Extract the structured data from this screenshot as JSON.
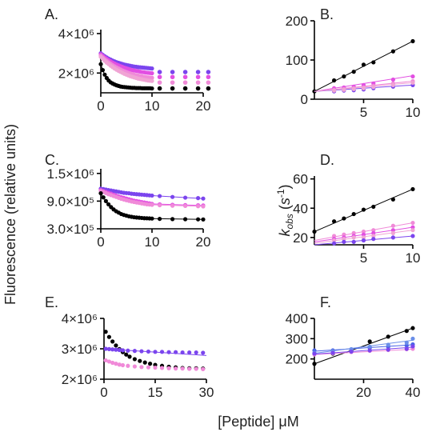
{
  "colors": {
    "black": "#000000",
    "purple": "#7b45ee",
    "magenta": "#e24fe2",
    "pink": "#f08ad8",
    "lightpink": "#f0a4d4",
    "blue": "#4a63e6",
    "lightblue": "#6a8ee8"
  },
  "y_axis_title": "Fluorescence (relative units)",
  "x_axis_title": "[Peptide] μM",
  "chart_data": [
    {
      "panel": "A.",
      "type": "scatter",
      "xlim": [
        0,
        20
      ],
      "ylim": [
        1000000,
        4200000
      ],
      "xticks": [
        0,
        10,
        20
      ],
      "xtick_labels": [
        "0",
        "10",
        "20"
      ],
      "yticks": [
        2000000,
        4000000
      ],
      "ytick_labels": [
        "2×10⁶",
        "4×10⁶"
      ],
      "series": [
        {
          "color": "purple",
          "values": [
            3000000,
            2920000,
            2850000,
            2790000,
            2730000,
            2680000,
            2630000,
            2590000,
            2550000,
            2520000,
            2490000,
            2460000,
            2430000,
            2410000,
            2390000,
            2370000,
            2350000,
            2330000,
            2320000,
            2300000,
            2290000,
            2280000,
            2270000,
            2260000,
            2250000,
            2240000,
            2230000
          ]
        },
        {
          "color": "magenta",
          "values": [
            2950000,
            2870000,
            2790000,
            2720000,
            2650000,
            2590000,
            2530000,
            2480000,
            2430000,
            2390000,
            2350000,
            2310000,
            2270000,
            2240000,
            2210000,
            2180000,
            2150000,
            2130000,
            2110000,
            2090000,
            2070000,
            2050000,
            2040000,
            2020000,
            2010000,
            2000000,
            1990000
          ]
        },
        {
          "color": "pink",
          "values": [
            2880000,
            2790000,
            2700000,
            2620000,
            2540000,
            2470000,
            2400000,
            2340000,
            2280000,
            2230000,
            2180000,
            2130000,
            2090000,
            2050000,
            2010000,
            1980000,
            1950000,
            1920000,
            1890000,
            1870000,
            1850000,
            1830000,
            1810000,
            1790000,
            1780000,
            1770000,
            1760000
          ]
        },
        {
          "color": "lightpink",
          "values": [
            2820000,
            2720000,
            2620000,
            2530000,
            2450000,
            2370000,
            2300000,
            2230000,
            2170000,
            2110000,
            2060000,
            2010000,
            1960000,
            1920000,
            1880000,
            1840000,
            1810000,
            1780000,
            1750000,
            1720000,
            1700000,
            1680000,
            1660000,
            1640000,
            1620000,
            1610000,
            1600000
          ]
        },
        {
          "color": "black",
          "values": [
            2450000,
            2150000,
            1920000,
            1750000,
            1620000,
            1530000,
            1470000,
            1420000,
            1380000,
            1350000,
            1320000,
            1300000,
            1290000,
            1280000,
            1270000,
            1260000,
            1250000,
            1250000,
            1240000,
            1240000,
            1240000,
            1230000,
            1230000,
            1230000,
            1230000,
            1230000,
            1220000
          ]
        }
      ],
      "series_ext": [
        {
          "color": "purple",
          "x": [
            11.5,
            14,
            16.5,
            19,
            21
          ],
          "y": [
            2050000,
            2050000,
            2050000,
            2050000,
            2050000
          ]
        },
        {
          "color": "magenta",
          "x": [
            11.5,
            14,
            16.5,
            19,
            21
          ],
          "y": [
            1800000,
            1800000,
            1800000,
            1800000,
            1800000
          ]
        },
        {
          "color": "pink",
          "x": [
            11.5,
            14,
            16.5,
            19,
            21
          ],
          "y": [
            1520000,
            1520000,
            1520000,
            1520000,
            1520000
          ]
        },
        {
          "color": "black",
          "x": [
            11.5,
            14,
            16.5,
            19,
            21
          ],
          "y": [
            1220000,
            1220000,
            1220000,
            1220000,
            1220000
          ]
        }
      ]
    },
    {
      "panel": "B.",
      "type": "scatter",
      "xlim": [
        0,
        10
      ],
      "ylim": [
        0,
        200
      ],
      "xticks": [
        5,
        10
      ],
      "xtick_labels": [
        "5",
        "10"
      ],
      "yticks": [
        0,
        100,
        200
      ],
      "ytick_labels": [
        "0",
        "100",
        "200"
      ],
      "series": [
        {
          "color": "black",
          "x": [
            0,
            2,
            3,
            4,
            5,
            6,
            8,
            10
          ],
          "y": [
            20,
            48,
            58,
            70,
            88,
            94,
            122,
            148
          ],
          "fit": [
            20,
            148
          ]
        },
        {
          "color": "magenta",
          "x": [
            2,
            3,
            4,
            5,
            6,
            8,
            10
          ],
          "y": [
            28,
            30,
            32,
            36,
            40,
            50,
            58
          ],
          "fit": [
            20,
            60
          ]
        },
        {
          "color": "pink",
          "x": [
            2,
            3,
            4,
            5,
            6,
            8,
            10
          ],
          "y": [
            24,
            26,
            28,
            30,
            34,
            40,
            46
          ],
          "fit": [
            20,
            46
          ]
        },
        {
          "color": "purple",
          "x": [
            2,
            3,
            4,
            5,
            6,
            8,
            10
          ],
          "y": [
            20,
            22,
            23,
            25,
            28,
            32,
            36
          ],
          "fit": [
            20,
            36
          ]
        },
        {
          "color": "lightpink",
          "x": [
            2,
            3,
            4,
            5,
            6,
            8,
            10
          ],
          "y": [
            22,
            24,
            26,
            28,
            31,
            36,
            42
          ],
          "fit": [
            20,
            42
          ]
        }
      ]
    },
    {
      "panel": "C.",
      "type": "scatter",
      "xlim": [
        0,
        20
      ],
      "ylim": [
        300000,
        1600000
      ],
      "xticks": [
        0,
        10,
        20
      ],
      "xtick_labels": [
        "0",
        "10",
        "20"
      ],
      "yticks": [
        300000,
        900000,
        1500000
      ],
      "ytick_labels": [
        "3.0×10⁵",
        "9.0×10⁵",
        "1.5×10⁶"
      ],
      "series": [
        {
          "color": "purple",
          "values": [
            1170000,
            1160000,
            1150000,
            1140000,
            1130000,
            1120000,
            1110000,
            1100000,
            1090000,
            1080000,
            1075000,
            1070000,
            1060000,
            1055000,
            1050000,
            1045000,
            1040000,
            1035000,
            1030000,
            1025000,
            1020000
          ],
          "x_end": 10,
          "ext": [
            1010000,
            990000,
            975000,
            965000,
            955000
          ]
        },
        {
          "color": "magenta",
          "values": [
            1140000,
            1120000,
            1100000,
            1080000,
            1060000,
            1040000,
            1020000,
            1000000,
            985000,
            970000,
            955000,
            940000,
            925000,
            910000,
            900000,
            890000,
            880000,
            870000,
            860000,
            850000,
            840000
          ],
          "x_end": 10,
          "ext": [
            830000,
            820000,
            815000,
            810000,
            805000
          ]
        },
        {
          "color": "pink",
          "values": [
            1120000,
            1100000,
            1075000,
            1050000,
            1030000,
            1010000,
            990000,
            970000,
            950000,
            935000,
            920000,
            905000,
            890000,
            880000,
            870000,
            860000,
            850000,
            840000,
            830000,
            825000,
            820000
          ],
          "x_end": 10,
          "ext": [
            810000,
            800000,
            795000,
            790000,
            785000
          ]
        },
        {
          "color": "black",
          "values": [
            1070000,
            980000,
            900000,
            830000,
            770000,
            720000,
            680000,
            650000,
            620000,
            600000,
            585000,
            570000,
            560000,
            550000,
            545000,
            540000,
            535000,
            530000,
            528000,
            525000,
            522000
          ],
          "x_end": 10,
          "ext": [
            515000,
            510000,
            508000,
            505000,
            503000
          ]
        }
      ]
    },
    {
      "panel": "D.",
      "type": "scatter",
      "xlim": [
        0,
        10
      ],
      "ylim": [
        15,
        62
      ],
      "xticks": [
        5,
        10
      ],
      "xtick_labels": [
        "5",
        "10"
      ],
      "yticks": [
        20,
        40,
        60
      ],
      "ytick_labels": [
        "20",
        "40",
        "60"
      ],
      "series": [
        {
          "color": "black",
          "x": [
            0,
            2,
            3,
            4,
            5,
            6,
            8,
            10
          ],
          "y": [
            24,
            31,
            33,
            36,
            39,
            41,
            46,
            53
          ],
          "fit": [
            24,
            53
          ]
        },
        {
          "color": "pink",
          "x": [
            2,
            3,
            4,
            5,
            6,
            8,
            10
          ],
          "y": [
            21,
            22,
            23,
            24,
            25,
            28,
            30
          ],
          "fit": [
            18,
            30
          ]
        },
        {
          "color": "magenta",
          "x": [
            2,
            3,
            4,
            5,
            6,
            8,
            10
          ],
          "y": [
            19,
            20,
            21,
            22,
            23,
            25,
            27
          ],
          "fit": [
            17,
            27
          ]
        },
        {
          "color": "lightpink",
          "x": [
            2,
            3,
            4,
            5,
            6,
            8,
            10
          ],
          "y": [
            18,
            19,
            20,
            20,
            21,
            23,
            25
          ],
          "fit": [
            16,
            25
          ]
        },
        {
          "color": "purple",
          "x": [
            2,
            3,
            4,
            5,
            6,
            8,
            10
          ],
          "y": [
            16,
            17,
            17,
            18,
            19,
            20,
            21
          ],
          "fit": [
            15,
            21
          ]
        }
      ]
    },
    {
      "panel": "E.",
      "type": "scatter",
      "xlim": [
        0,
        30
      ],
      "ylim": [
        2000000,
        4000000
      ],
      "xticks": [
        0,
        15,
        30
      ],
      "xtick_labels": [
        "0",
        "15",
        "30"
      ],
      "yticks": [
        2000000,
        3000000,
        4000000
      ],
      "ytick_labels": [
        "2×10⁶",
        "3×10⁶",
        "4×10⁶"
      ],
      "series": [
        {
          "color": "black",
          "x": [
            0.5,
            1.5,
            2.5,
            3.5,
            4.5,
            5.5,
            6.5,
            7.5,
            9,
            10.5,
            12,
            13.5,
            15,
            17,
            19,
            21,
            23,
            25,
            27,
            29
          ],
          "y": [
            3560000,
            3390000,
            3240000,
            3110000,
            2990000,
            2890000,
            2810000,
            2740000,
            2660000,
            2600000,
            2550000,
            2510000,
            2470000,
            2440000,
            2410000,
            2390000,
            2370000,
            2360000,
            2360000,
            2350000
          ]
        },
        {
          "color": "purple",
          "x": [
            0.5,
            1.5,
            2.5,
            3.5,
            4.5,
            5.5,
            7,
            9,
            11,
            13,
            15,
            17,
            19,
            21,
            23,
            25,
            27,
            29
          ],
          "y": [
            3000000,
            2990000,
            2980000,
            2970000,
            2960000,
            2950000,
            2940000,
            2930000,
            2920000,
            2910000,
            2900000,
            2900000,
            2890000,
            2890000,
            2880000,
            2880000,
            2880000,
            2870000
          ],
          "fit": [
            3000000,
            2780000
          ]
        },
        {
          "color": "pink",
          "x": [
            0.5,
            1.5,
            2.5,
            3.5,
            4.5,
            5.5,
            7,
            9,
            11,
            13,
            15,
            17,
            19,
            21,
            23,
            25,
            27,
            29
          ],
          "y": [
            2620000,
            2580000,
            2540000,
            2510000,
            2480000,
            2460000,
            2440000,
            2420000,
            2400000,
            2390000,
            2380000,
            2370000,
            2360000,
            2350000,
            2350000,
            2340000,
            2340000,
            2330000
          ]
        }
      ]
    },
    {
      "panel": "F.",
      "type": "scatter",
      "xlim": [
        0,
        40
      ],
      "ylim": [
        100,
        400
      ],
      "xticks": [
        20,
        40
      ],
      "xtick_labels": [
        "20",
        "40"
      ],
      "yticks": [
        200,
        300,
        400
      ],
      "ytick_labels": [
        "200",
        "300",
        "400"
      ],
      "series": [
        {
          "color": "black",
          "x": [
            0,
            7.5,
            15,
            22.5,
            30,
            37.5,
            40
          ],
          "y": [
            176,
            226,
            240,
            286,
            310,
            338,
            352
          ],
          "fit": [
            176,
            352
          ]
        },
        {
          "color": "blue",
          "x": [
            0,
            7.5,
            15,
            22.5,
            30,
            37.5,
            40
          ],
          "y": [
            242,
            242,
            246,
            254,
            260,
            266,
            272
          ],
          "fit": [
            238,
            270
          ]
        },
        {
          "color": "lightblue",
          "x": [
            0,
            7.5,
            15,
            22.5,
            30,
            37.5,
            40
          ],
          "y": [
            230,
            238,
            248,
            260,
            270,
            280,
            300
          ],
          "fit": [
            228,
            292
          ]
        },
        {
          "color": "pink",
          "x": [
            0,
            7.5,
            15,
            22.5,
            30,
            37.5,
            40
          ],
          "y": [
            222,
            228,
            234,
            240,
            244,
            248,
            250
          ],
          "fit": [
            222,
            248
          ]
        },
        {
          "color": "purple",
          "x": [
            0,
            7.5,
            15,
            22.5,
            30,
            37.5,
            40
          ],
          "y": [
            226,
            230,
            236,
            242,
            246,
            250,
            262
          ],
          "fit": [
            224,
            258
          ]
        }
      ]
    }
  ]
}
